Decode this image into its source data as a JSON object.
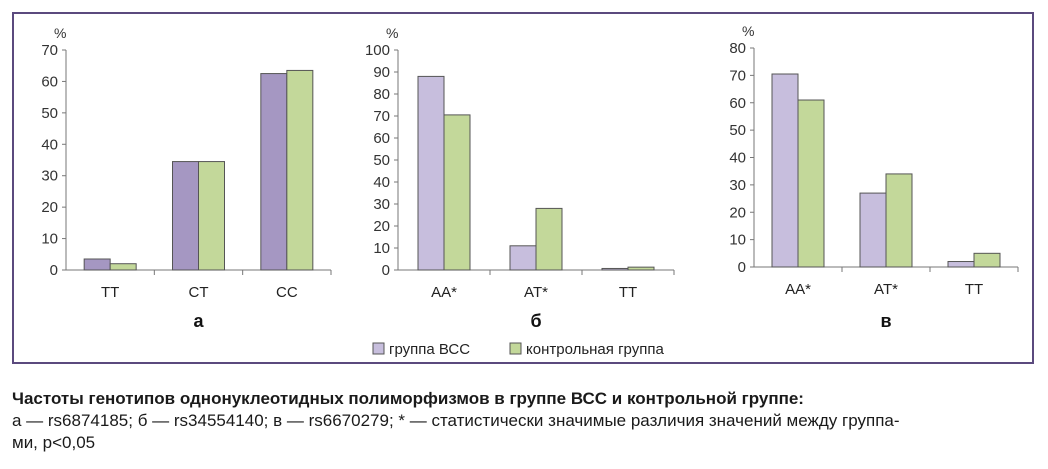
{
  "colors": {
    "series1": "#c7bedd",
    "series1_panel_a": "#a597c2",
    "series2": "#c3d89a",
    "frame": "#5b4a7e",
    "stroke": "#555555"
  },
  "legend": {
    "series1": "группа ВСС",
    "series2": "контрольная группа"
  },
  "caption": {
    "title": "Частоты генотипов однонуклеотидных полиморфизмов в группе ВСС и контрольной группе:",
    "body_line1": "а — rs6874185; б — rs34554140; в — rs6670279; * — статистически значимые различия значений между группа-",
    "body_line2": "ми, p<0,05"
  },
  "chart_data": [
    {
      "type": "bar",
      "panel_label": "а",
      "unit": "%",
      "ylim": [
        0,
        70
      ],
      "yticks": [
        "0",
        "10",
        "20",
        "30",
        "40",
        "50",
        "60",
        "70"
      ],
      "categories": [
        "TT",
        "CT",
        "CC"
      ],
      "series": [
        {
          "name": "группа ВСС",
          "values": [
            3.5,
            34.5,
            62.5
          ]
        },
        {
          "name": "контрольная группа",
          "values": [
            2,
            34.5,
            63.5
          ]
        }
      ],
      "grid": true
    },
    {
      "type": "bar",
      "panel_label": "б",
      "unit": "%",
      "ylim": [
        0,
        100
      ],
      "yticks": [
        "0",
        "10",
        "20",
        "30",
        "40",
        "50",
        "60",
        "70",
        "80",
        "90",
        "100"
      ],
      "categories": [
        "AA*",
        "AT*",
        "TT"
      ],
      "series": [
        {
          "name": "группа ВСС",
          "values": [
            88,
            11,
            0.7
          ]
        },
        {
          "name": "контрольная группа",
          "values": [
            70.5,
            28,
            1.3
          ]
        }
      ],
      "grid": true
    },
    {
      "type": "bar",
      "panel_label": "в",
      "unit": "%",
      "ylim": [
        0,
        80
      ],
      "yticks": [
        "0",
        "10",
        "20",
        "30",
        "40",
        "50",
        "60",
        "70",
        "80"
      ],
      "categories": [
        "AA*",
        "AT*",
        "TT"
      ],
      "series": [
        {
          "name": "группа ВСС",
          "values": [
            70.5,
            27,
            2
          ]
        },
        {
          "name": "контрольная группа",
          "values": [
            61,
            34,
            5
          ]
        }
      ],
      "grid": true
    }
  ]
}
